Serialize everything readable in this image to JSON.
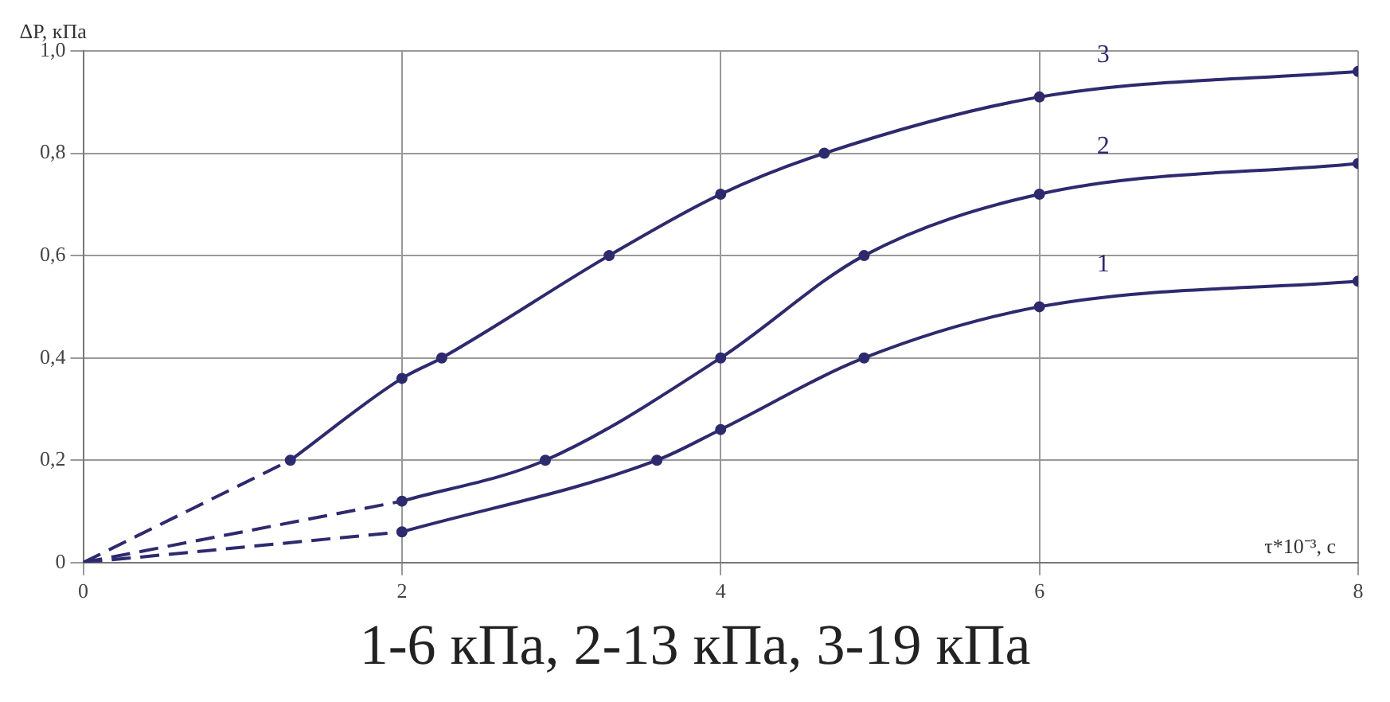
{
  "chart_data": {
    "type": "line",
    "xlabel": "τ*10⁻³, с",
    "ylabel": "ΔP, кПа",
    "annotations": [
      "1-6 кПа, 2-13 кПа, 3-19 кПа"
    ],
    "series": [
      {
        "name": "1",
        "color": "#2e2a6e",
        "x": [
          2,
          3.6,
          4,
          4.9,
          6,
          8
        ],
        "values": [
          0.06,
          0.2,
          0.26,
          0.4,
          0.5,
          0.55
        ],
        "marker": "circle",
        "line_style": "solid"
      },
      {
        "name": "2",
        "color": "#2e2a6e",
        "x": [
          2,
          2.9,
          4,
          4.9,
          6,
          8
        ],
        "values": [
          0.12,
          0.2,
          0.4,
          0.6,
          0.72,
          0.78
        ],
        "marker": "circle",
        "line_style": "solid"
      },
      {
        "name": "3",
        "color": "#2e2a6e",
        "x": [
          1.3,
          2,
          2.25,
          3.3,
          4,
          4.65,
          6,
          8
        ],
        "values": [
          0.2,
          0.36,
          0.4,
          0.6,
          0.72,
          0.8,
          0.91,
          0.96
        ],
        "marker": "circle",
        "line_style": "solid"
      },
      {
        "color": "#2e2a6e",
        "x": [
          0,
          2
        ],
        "values": [
          0,
          0.06
        ],
        "marker": "none",
        "line_style": "dashed"
      },
      {
        "color": "#2e2a6e",
        "x": [
          0,
          2
        ],
        "values": [
          0,
          0.12
        ],
        "marker": "none",
        "line_style": "dashed"
      },
      {
        "color": "#2e2a6e",
        "x": [
          0,
          1.3
        ],
        "values": [
          0,
          0.2
        ],
        "marker": "none",
        "line_style": "dashed"
      }
    ],
    "xlim": [
      0,
      8
    ],
    "xticks": [
      0,
      2,
      4,
      6,
      8
    ],
    "ylim": [
      0,
      1
    ],
    "yticks": [
      0,
      {
        "value": 0.2,
        "label": "0,2"
      },
      {
        "value": 0.4,
        "label": "0,4"
      },
      {
        "value": 0.6,
        "label": "0,6"
      },
      {
        "value": 0.8,
        "label": "0,8"
      },
      {
        "value": 1,
        "label": "1,0"
      }
    ],
    "grid": true,
    "legend": false
  }
}
